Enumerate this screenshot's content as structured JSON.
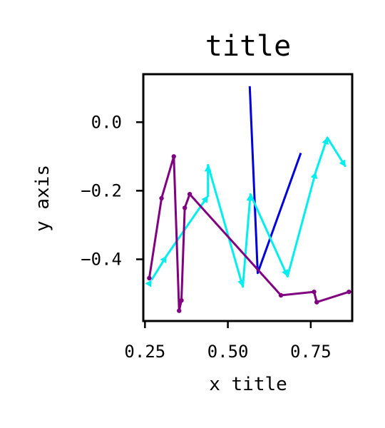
{
  "chart_data": {
    "type": "line",
    "title": "title",
    "xlabel": "x title",
    "ylabel": "y axis",
    "xlim": [
      0.245,
      0.875
    ],
    "ylim": [
      -0.58,
      0.14
    ],
    "xticks": [
      {
        "value": 0.25,
        "label": "0.25"
      },
      {
        "value": 0.5,
        "label": "0.50"
      },
      {
        "value": 0.75,
        "label": "0.75"
      }
    ],
    "yticks": [
      {
        "value": 0.0,
        "label": "0.0"
      },
      {
        "value": -0.2,
        "label": "−0.2"
      },
      {
        "value": -0.4,
        "label": "−0.4"
      }
    ],
    "grid": false,
    "legend": "none",
    "series": [
      {
        "color": "#0000dd",
        "marker": "none",
        "points": [
          [
            0.566,
            0.105
          ],
          [
            0.59,
            -0.44
          ],
          [
            0.72,
            -0.09
          ]
        ]
      },
      {
        "color": "#00eeee",
        "marker": "triangle",
        "points": [
          [
            0.27,
            -0.46
          ],
          [
            0.315,
            -0.39
          ],
          [
            0.44,
            -0.215
          ],
          [
            0.44,
            -0.125
          ],
          [
            0.545,
            -0.48
          ],
          [
            0.568,
            -0.21
          ],
          [
            0.68,
            -0.45
          ],
          [
            0.765,
            -0.145
          ],
          [
            0.8,
            -0.045
          ],
          [
            0.855,
            -0.13
          ]
        ]
      },
      {
        "color": "#800080",
        "marker": "dot",
        "points": [
          [
            0.263,
            -0.455
          ],
          [
            0.3,
            -0.222
          ],
          [
            0.337,
            -0.1
          ],
          [
            0.353,
            -0.55
          ],
          [
            0.36,
            -0.52
          ],
          [
            0.37,
            -0.25
          ],
          [
            0.385,
            -0.21
          ],
          [
            0.66,
            -0.505
          ],
          [
            0.76,
            -0.495
          ],
          [
            0.768,
            -0.525
          ],
          [
            0.865,
            -0.495
          ]
        ]
      }
    ]
  }
}
